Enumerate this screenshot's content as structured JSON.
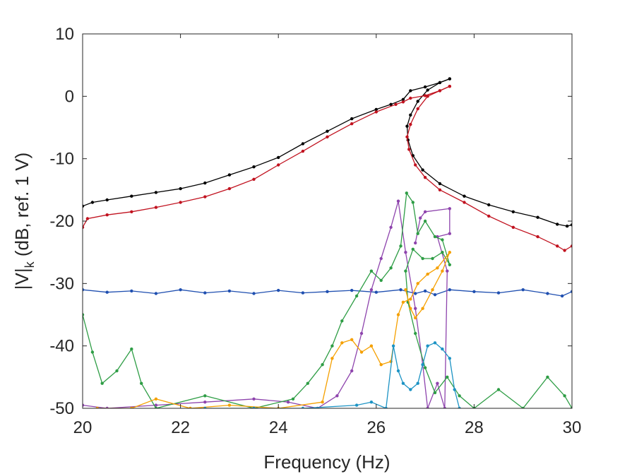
{
  "chart_data": {
    "type": "line",
    "title": "",
    "xlabel": "Frequency (Hz)",
    "ylabel": {
      "main": "|V|",
      "subscript": "k",
      "rest": " (dB, ref. 1 V)"
    },
    "xlim": [
      20,
      30
    ],
    "ylim": [
      -50,
      10
    ],
    "xticks": [
      20,
      22,
      24,
      26,
      28,
      30
    ],
    "yticks": [
      10,
      0,
      -10,
      -20,
      -30,
      -40,
      -50
    ],
    "grid": false,
    "legend": "none",
    "series": [
      {
        "name": "black-sweep-up",
        "color": "#000000",
        "points": [
          [
            20.0,
            -17.6
          ],
          [
            20.2,
            -17.0
          ],
          [
            20.5,
            -16.6
          ],
          [
            21.0,
            -16.0
          ],
          [
            21.5,
            -15.4
          ],
          [
            22.0,
            -14.8
          ],
          [
            22.5,
            -13.9
          ],
          [
            23.0,
            -12.6
          ],
          [
            23.5,
            -11.3
          ],
          [
            24.0,
            -9.8
          ],
          [
            24.5,
            -7.6
          ],
          [
            25.0,
            -5.6
          ],
          [
            25.5,
            -3.6
          ],
          [
            26.0,
            -2.1
          ],
          [
            26.3,
            -1.3
          ],
          [
            26.55,
            -0.5
          ],
          [
            26.7,
            0.9
          ],
          [
            27.0,
            1.5
          ],
          [
            27.3,
            2.2
          ],
          [
            27.5,
            2.8
          ]
        ]
      },
      {
        "name": "black-sweep-down",
        "color": "#000000",
        "points": [
          [
            27.5,
            2.8
          ],
          [
            27.3,
            2.2
          ],
          [
            27.05,
            1.0
          ],
          [
            26.85,
            -0.8
          ],
          [
            26.7,
            -3.0
          ],
          [
            26.63,
            -4.8
          ],
          [
            26.65,
            -7.0
          ],
          [
            26.75,
            -9.5
          ],
          [
            26.95,
            -11.8
          ],
          [
            27.3,
            -14.0
          ],
          [
            27.8,
            -16.0
          ],
          [
            28.3,
            -17.4
          ],
          [
            28.8,
            -18.5
          ],
          [
            29.3,
            -19.4
          ],
          [
            29.7,
            -20.5
          ],
          [
            29.9,
            -20.8
          ],
          [
            30.0,
            -20.6
          ]
        ]
      },
      {
        "name": "red-sweep-up",
        "color": "#c1121f",
        "points": [
          [
            20.0,
            -21.0
          ],
          [
            20.1,
            -19.6
          ],
          [
            20.5,
            -19.0
          ],
          [
            21.0,
            -18.5
          ],
          [
            21.5,
            -17.8
          ],
          [
            22.0,
            -17.0
          ],
          [
            22.5,
            -16.1
          ],
          [
            23.0,
            -14.8
          ],
          [
            23.5,
            -13.3
          ],
          [
            24.0,
            -11.0
          ],
          [
            24.5,
            -8.8
          ],
          [
            25.0,
            -6.5
          ],
          [
            25.5,
            -4.4
          ],
          [
            26.0,
            -2.5
          ],
          [
            26.4,
            -1.3
          ],
          [
            26.55,
            -0.9
          ],
          [
            26.7,
            -0.3
          ],
          [
            27.0,
            0.1
          ],
          [
            27.3,
            0.9
          ],
          [
            27.5,
            1.6
          ]
        ]
      },
      {
        "name": "red-sweep-down",
        "color": "#c1121f",
        "points": [
          [
            27.5,
            1.6
          ],
          [
            27.3,
            0.9
          ],
          [
            27.05,
            0.0
          ],
          [
            26.85,
            -2.0
          ],
          [
            26.7,
            -4.5
          ],
          [
            26.63,
            -6.5
          ],
          [
            26.67,
            -8.5
          ],
          [
            26.8,
            -11.0
          ],
          [
            27.0,
            -13.0
          ],
          [
            27.3,
            -15.0
          ],
          [
            27.8,
            -17.0
          ],
          [
            28.3,
            -19.2
          ],
          [
            28.8,
            -21.0
          ],
          [
            29.3,
            -22.5
          ],
          [
            29.7,
            -24.0
          ],
          [
            29.85,
            -24.7
          ],
          [
            30.0,
            -24.0
          ]
        ]
      },
      {
        "name": "blue",
        "color": "#1f4fb0",
        "points": [
          [
            20.0,
            -31.0
          ],
          [
            20.5,
            -31.4
          ],
          [
            21.0,
            -31.2
          ],
          [
            21.5,
            -31.6
          ],
          [
            22.0,
            -31.0
          ],
          [
            22.5,
            -31.5
          ],
          [
            23.0,
            -31.2
          ],
          [
            23.5,
            -31.6
          ],
          [
            24.0,
            -31.1
          ],
          [
            24.5,
            -31.5
          ],
          [
            25.0,
            -31.3
          ],
          [
            25.5,
            -31.1
          ],
          [
            26.0,
            -31.4
          ],
          [
            26.5,
            -31.0
          ],
          [
            26.8,
            -31.6
          ],
          [
            27.0,
            -31.2
          ],
          [
            27.2,
            -31.8
          ],
          [
            27.5,
            -31.0
          ],
          [
            28.0,
            -31.3
          ],
          [
            28.5,
            -31.5
          ],
          [
            29.0,
            -31.0
          ],
          [
            29.5,
            -31.6
          ],
          [
            29.8,
            -32.0
          ],
          [
            30.0,
            -31.3
          ]
        ]
      },
      {
        "name": "purple",
        "color": "#8e44ad",
        "points": [
          [
            20.0,
            -49.5
          ],
          [
            20.5,
            -50.0
          ],
          [
            21.5,
            -49.5
          ],
          [
            22.5,
            -49.0
          ],
          [
            23.5,
            -48.5
          ],
          [
            24.2,
            -49.0
          ],
          [
            24.8,
            -50.0
          ],
          [
            25.2,
            -48.0
          ],
          [
            25.5,
            -44.0
          ],
          [
            25.7,
            -38.0
          ],
          [
            25.9,
            -31.0
          ],
          [
            26.1,
            -26.0
          ],
          [
            26.3,
            -21.0
          ],
          [
            26.45,
            -16.8
          ],
          [
            26.6,
            -25.0
          ],
          [
            26.8,
            -34.0
          ],
          [
            26.95,
            -43.0
          ],
          [
            27.05,
            -50.0
          ],
          [
            27.25,
            -46.0
          ],
          [
            27.4,
            -50.0
          ],
          [
            27.45,
            -28.0
          ],
          [
            27.25,
            -22.5
          ],
          [
            27.5,
            -22.0
          ],
          [
            27.5,
            -18.0
          ],
          [
            27.0,
            -18.5
          ],
          [
            26.9,
            -19.5
          ],
          [
            26.8,
            -23.5
          ]
        ]
      },
      {
        "name": "green",
        "color": "#2e9d45",
        "points": [
          [
            20.0,
            -35.0
          ],
          [
            20.2,
            -41.0
          ],
          [
            20.4,
            -46.0
          ],
          [
            20.7,
            -44.0
          ],
          [
            21.0,
            -40.5
          ],
          [
            21.2,
            -46.0
          ],
          [
            21.5,
            -50.0
          ],
          [
            22.5,
            -48.0
          ],
          [
            23.5,
            -50.0
          ],
          [
            24.3,
            -48.5
          ],
          [
            24.6,
            -46.0
          ],
          [
            24.9,
            -43.0
          ],
          [
            25.1,
            -40.0
          ],
          [
            25.3,
            -36.0
          ],
          [
            25.6,
            -32.0
          ],
          [
            25.9,
            -28.0
          ],
          [
            26.1,
            -29.5
          ],
          [
            26.3,
            -27.5
          ],
          [
            26.5,
            -24.0
          ],
          [
            26.62,
            -15.5
          ],
          [
            26.75,
            -17.0
          ],
          [
            26.85,
            -22.0
          ],
          [
            27.0,
            -20.0
          ],
          [
            27.2,
            -22.5
          ],
          [
            27.35,
            -23.0
          ],
          [
            27.5,
            -27.0
          ],
          [
            27.35,
            -25.0
          ],
          [
            27.15,
            -26.0
          ],
          [
            26.95,
            -26.0
          ],
          [
            26.75,
            -24.5
          ],
          [
            26.6,
            -28.0
          ],
          [
            26.65,
            -33.0
          ],
          [
            26.8,
            -38.0
          ],
          [
            27.0,
            -43.5
          ],
          [
            27.2,
            -47.5
          ],
          [
            27.45,
            -45.0
          ],
          [
            27.7,
            -48.0
          ],
          [
            28.0,
            -50.0
          ],
          [
            28.5,
            -47.0
          ],
          [
            29.0,
            -50.0
          ],
          [
            29.5,
            -45.0
          ],
          [
            29.85,
            -48.0
          ],
          [
            30.0,
            -50.0
          ]
        ]
      },
      {
        "name": "orange",
        "color": "#f5a000",
        "points": [
          [
            20.3,
            -50.0
          ],
          [
            21.0,
            -50.0
          ],
          [
            21.5,
            -48.5
          ],
          [
            22.2,
            -50.0
          ],
          [
            23.0,
            -49.5
          ],
          [
            24.0,
            -50.0
          ],
          [
            24.9,
            -49.0
          ],
          [
            25.1,
            -42.0
          ],
          [
            25.3,
            -39.5
          ],
          [
            25.5,
            -39.0
          ],
          [
            25.7,
            -41.0
          ],
          [
            25.9,
            -40.0
          ],
          [
            26.1,
            -43.0
          ],
          [
            26.3,
            -42.5
          ],
          [
            26.45,
            -35.0
          ],
          [
            26.55,
            -33.0
          ],
          [
            26.7,
            -32.5
          ],
          [
            26.85,
            -30.0
          ],
          [
            27.05,
            -28.5
          ],
          [
            27.25,
            -27.5
          ],
          [
            27.5,
            -25.0
          ],
          [
            27.35,
            -28.0
          ],
          [
            27.15,
            -31.0
          ],
          [
            26.95,
            -34.0
          ],
          [
            26.8,
            -35.5
          ],
          [
            26.7,
            -34.0
          ],
          [
            26.6,
            -31.0
          ]
        ]
      },
      {
        "name": "cyan",
        "color": "#1c93c4",
        "points": [
          [
            22.5,
            -50.0
          ],
          [
            23.5,
            -50.0
          ],
          [
            24.5,
            -50.0
          ],
          [
            25.6,
            -49.5
          ],
          [
            25.9,
            -49.0
          ],
          [
            26.2,
            -50.0
          ],
          [
            26.35,
            -40.0
          ],
          [
            26.45,
            -44.0
          ],
          [
            26.55,
            -46.0
          ],
          [
            26.7,
            -47.0
          ],
          [
            26.85,
            -46.0
          ],
          [
            26.95,
            -43.0
          ],
          [
            27.05,
            -40.0
          ],
          [
            27.2,
            -39.5
          ],
          [
            27.35,
            -40.5
          ],
          [
            27.5,
            -42.0
          ],
          [
            27.6,
            -47.0
          ],
          [
            27.7,
            -50.0
          ]
        ]
      }
    ]
  }
}
